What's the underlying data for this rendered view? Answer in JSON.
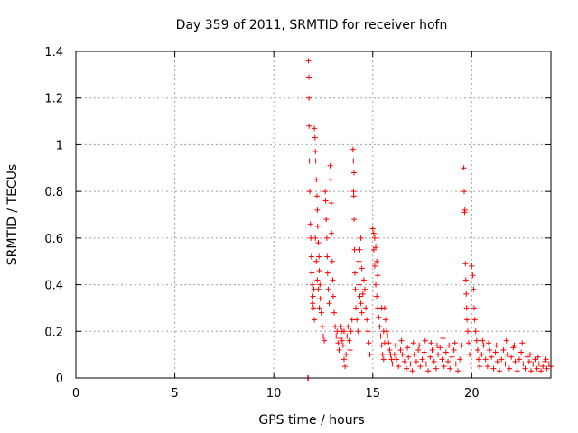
{
  "chart_data": {
    "type": "scatter",
    "title": "Day 359 of 2011, SRMTID for receiver hofn",
    "xlabel": "GPS time / hours",
    "ylabel": "SRMTID / TECUs",
    "xlim": [
      0,
      24
    ],
    "ylim": [
      0,
      1.4
    ],
    "x_ticks": [
      "0",
      "5",
      "10",
      "15",
      "20"
    ],
    "y_ticks": [
      "0",
      "0.2",
      "0.4",
      "0.6",
      "0.8",
      "1",
      "1.2",
      "1.4"
    ],
    "grid": true,
    "marker": "+",
    "color": "#ff0000",
    "series": [
      {
        "name": "",
        "points": [
          [
            11.72,
            0.0
          ],
          [
            11.74,
            0.0
          ],
          [
            11.75,
            1.36
          ],
          [
            11.77,
            1.29
          ],
          [
            11.78,
            1.2
          ],
          [
            11.78,
            1.08
          ],
          [
            11.8,
            0.93
          ],
          [
            11.82,
            0.8
          ],
          [
            11.85,
            0.66
          ],
          [
            11.87,
            0.6
          ],
          [
            11.9,
            0.52
          ],
          [
            11.92,
            0.45
          ],
          [
            11.95,
            0.4
          ],
          [
            11.98,
            0.35
          ],
          [
            12.0,
            0.3
          ],
          [
            12.05,
            0.25
          ],
          [
            11.96,
            0.32
          ],
          [
            12.02,
            0.38
          ],
          [
            12.05,
            1.07
          ],
          [
            12.08,
            1.03
          ],
          [
            12.1,
            0.97
          ],
          [
            12.12,
            0.93
          ],
          [
            12.15,
            0.85
          ],
          [
            12.18,
            0.78
          ],
          [
            12.2,
            0.72
          ],
          [
            12.22,
            0.65
          ],
          [
            12.25,
            0.58
          ],
          [
            12.28,
            0.52
          ],
          [
            12.3,
            0.46
          ],
          [
            12.33,
            0.4
          ],
          [
            12.35,
            0.34
          ],
          [
            12.4,
            0.28
          ],
          [
            12.45,
            0.22
          ],
          [
            12.5,
            0.18
          ],
          [
            12.55,
            0.16
          ],
          [
            12.1,
            0.6
          ],
          [
            12.15,
            0.5
          ],
          [
            12.2,
            0.42
          ],
          [
            12.25,
            0.38
          ],
          [
            12.3,
            0.3
          ],
          [
            12.6,
            0.8
          ],
          [
            12.62,
            0.76
          ],
          [
            12.65,
            0.68
          ],
          [
            12.68,
            0.6
          ],
          [
            12.7,
            0.52
          ],
          [
            12.72,
            0.45
          ],
          [
            12.75,
            0.38
          ],
          [
            12.8,
            0.32
          ],
          [
            12.85,
            0.91
          ],
          [
            12.88,
            0.85
          ],
          [
            12.9,
            0.75
          ],
          [
            12.92,
            0.62
          ],
          [
            12.95,
            0.5
          ],
          [
            12.98,
            0.42
          ],
          [
            13.0,
            0.35
          ],
          [
            13.05,
            0.28
          ],
          [
            13.1,
            0.22
          ],
          [
            13.15,
            0.18
          ],
          [
            13.2,
            0.2
          ],
          [
            13.25,
            0.15
          ],
          [
            13.3,
            0.12
          ],
          [
            13.35,
            0.17
          ],
          [
            13.4,
            0.22
          ],
          [
            13.45,
            0.2
          ],
          [
            13.5,
            0.14
          ],
          [
            13.55,
            0.08
          ],
          [
            13.6,
            0.05
          ],
          [
            13.65,
            0.1
          ],
          [
            13.7,
            0.18
          ],
          [
            13.75,
            0.22
          ],
          [
            13.8,
            0.16
          ],
          [
            13.85,
            0.12
          ],
          [
            13.9,
            0.2
          ],
          [
            13.95,
            0.25
          ],
          [
            13.55,
            0.2
          ],
          [
            13.45,
            0.16
          ],
          [
            14.0,
            0.98
          ],
          [
            14.02,
            0.93
          ],
          [
            14.05,
            0.88
          ],
          [
            14.03,
            0.8
          ],
          [
            14.04,
            0.78
          ],
          [
            14.06,
            0.68
          ],
          [
            14.08,
            0.55
          ],
          [
            14.1,
            0.45
          ],
          [
            14.12,
            0.38
          ],
          [
            14.15,
            0.3
          ],
          [
            14.2,
            0.25
          ],
          [
            14.25,
            0.2
          ],
          [
            14.3,
            0.4
          ],
          [
            14.35,
            0.35
          ],
          [
            14.4,
            0.32
          ],
          [
            14.45,
            0.28
          ],
          [
            14.5,
            0.36
          ],
          [
            14.55,
            0.42
          ],
          [
            14.6,
            0.38
          ],
          [
            14.65,
            0.3
          ],
          [
            14.7,
            0.25
          ],
          [
            14.75,
            0.2
          ],
          [
            14.8,
            0.15
          ],
          [
            14.85,
            0.1
          ],
          [
            14.3,
            0.5
          ],
          [
            14.35,
            0.55
          ],
          [
            14.4,
            0.6
          ],
          [
            14.45,
            0.47
          ],
          [
            15.0,
            0.64
          ],
          [
            15.05,
            0.62
          ],
          [
            15.1,
            0.6
          ],
          [
            15.15,
            0.56
          ],
          [
            15.2,
            0.5
          ],
          [
            15.25,
            0.44
          ],
          [
            15.05,
            0.55
          ],
          [
            15.1,
            0.48
          ],
          [
            15.15,
            0.4
          ],
          [
            15.2,
            0.35
          ],
          [
            15.25,
            0.3
          ],
          [
            15.3,
            0.26
          ],
          [
            15.35,
            0.22
          ],
          [
            15.4,
            0.18
          ],
          [
            15.45,
            0.14
          ],
          [
            15.5,
            0.1
          ],
          [
            15.55,
            0.08
          ],
          [
            15.6,
            0.3
          ],
          [
            15.65,
            0.25
          ],
          [
            15.7,
            0.2
          ],
          [
            15.75,
            0.18
          ],
          [
            15.8,
            0.15
          ],
          [
            15.85,
            0.12
          ],
          [
            15.9,
            0.1
          ],
          [
            15.95,
            0.08
          ],
          [
            16.0,
            0.06
          ],
          [
            15.45,
            0.3
          ],
          [
            15.55,
            0.2
          ],
          [
            15.6,
            0.15
          ],
          [
            16.1,
            0.1
          ],
          [
            16.2,
            0.08
          ],
          [
            16.3,
            0.05
          ],
          [
            16.4,
            0.12
          ],
          [
            16.5,
            0.1
          ],
          [
            16.6,
            0.07
          ],
          [
            16.7,
            0.04
          ],
          [
            16.8,
            0.09
          ],
          [
            16.9,
            0.06
          ],
          [
            17.0,
            0.03
          ],
          [
            17.1,
            0.1
          ],
          [
            17.2,
            0.07
          ],
          [
            17.3,
            0.12
          ],
          [
            17.4,
            0.05
          ],
          [
            17.5,
            0.08
          ],
          [
            17.6,
            0.11
          ],
          [
            17.7,
            0.06
          ],
          [
            17.8,
            0.03
          ],
          [
            17.9,
            0.09
          ],
          [
            18.0,
            0.12
          ],
          [
            18.1,
            0.07
          ],
          [
            18.2,
            0.04
          ],
          [
            18.3,
            0.1
          ],
          [
            18.4,
            0.13
          ],
          [
            18.5,
            0.08
          ],
          [
            18.6,
            0.05
          ],
          [
            18.7,
            0.11
          ],
          [
            18.8,
            0.07
          ],
          [
            18.9,
            0.04
          ],
          [
            19.0,
            0.09
          ],
          [
            19.1,
            0.12
          ],
          [
            19.2,
            0.06
          ],
          [
            19.3,
            0.03
          ],
          [
            19.4,
            0.08
          ],
          [
            19.5,
            0.14
          ],
          [
            16.15,
            0.14
          ],
          [
            16.45,
            0.16
          ],
          [
            16.75,
            0.13
          ],
          [
            17.05,
            0.15
          ],
          [
            17.35,
            0.14
          ],
          [
            17.65,
            0.16
          ],
          [
            17.95,
            0.15
          ],
          [
            18.25,
            0.14
          ],
          [
            18.55,
            0.17
          ],
          [
            18.85,
            0.14
          ],
          [
            19.15,
            0.15
          ],
          [
            19.6,
            0.9
          ],
          [
            19.62,
            0.8
          ],
          [
            19.64,
            0.71
          ],
          [
            19.66,
            0.72
          ],
          [
            19.68,
            0.49
          ],
          [
            19.7,
            0.42
          ],
          [
            19.72,
            0.36
          ],
          [
            19.74,
            0.3
          ],
          [
            19.76,
            0.25
          ],
          [
            19.8,
            0.2
          ],
          [
            19.85,
            0.15
          ],
          [
            19.9,
            0.1
          ],
          [
            19.95,
            0.06
          ],
          [
            20.0,
            0.48
          ],
          [
            20.05,
            0.44
          ],
          [
            20.1,
            0.38
          ],
          [
            20.12,
            0.3
          ],
          [
            20.15,
            0.25
          ],
          [
            20.2,
            0.2
          ],
          [
            20.25,
            0.16
          ],
          [
            20.3,
            0.12
          ],
          [
            20.35,
            0.08
          ],
          [
            20.4,
            0.05
          ],
          [
            20.5,
            0.1
          ],
          [
            20.6,
            0.14
          ],
          [
            20.7,
            0.08
          ],
          [
            20.8,
            0.05
          ],
          [
            20.9,
            0.12
          ],
          [
            21.0,
            0.09
          ],
          [
            21.1,
            0.04
          ],
          [
            21.2,
            0.11
          ],
          [
            21.3,
            0.07
          ],
          [
            21.4,
            0.03
          ],
          [
            21.5,
            0.08
          ],
          [
            21.6,
            0.12
          ],
          [
            21.7,
            0.06
          ],
          [
            21.8,
            0.1
          ],
          [
            21.9,
            0.04
          ],
          [
            22.0,
            0.09
          ],
          [
            22.1,
            0.13
          ],
          [
            22.2,
            0.07
          ],
          [
            22.3,
            0.03
          ],
          [
            22.4,
            0.08
          ],
          [
            22.5,
            0.11
          ],
          [
            22.6,
            0.06
          ],
          [
            22.7,
            0.04
          ],
          [
            22.8,
            0.09
          ],
          [
            22.9,
            0.07
          ],
          [
            23.0,
            0.03
          ],
          [
            23.1,
            0.06
          ],
          [
            23.2,
            0.08
          ],
          [
            23.3,
            0.04
          ],
          [
            23.4,
            0.06
          ],
          [
            23.5,
            0.03
          ],
          [
            23.6,
            0.05
          ],
          [
            23.7,
            0.07
          ],
          [
            23.8,
            0.04
          ],
          [
            23.9,
            0.06
          ],
          [
            24.0,
            0.05
          ],
          [
            20.55,
            0.16
          ],
          [
            20.85,
            0.15
          ],
          [
            21.25,
            0.14
          ],
          [
            21.75,
            0.16
          ],
          [
            22.15,
            0.14
          ],
          [
            22.55,
            0.15
          ],
          [
            22.95,
            0.1
          ],
          [
            23.35,
            0.09
          ],
          [
            23.75,
            0.08
          ]
        ]
      }
    ]
  }
}
